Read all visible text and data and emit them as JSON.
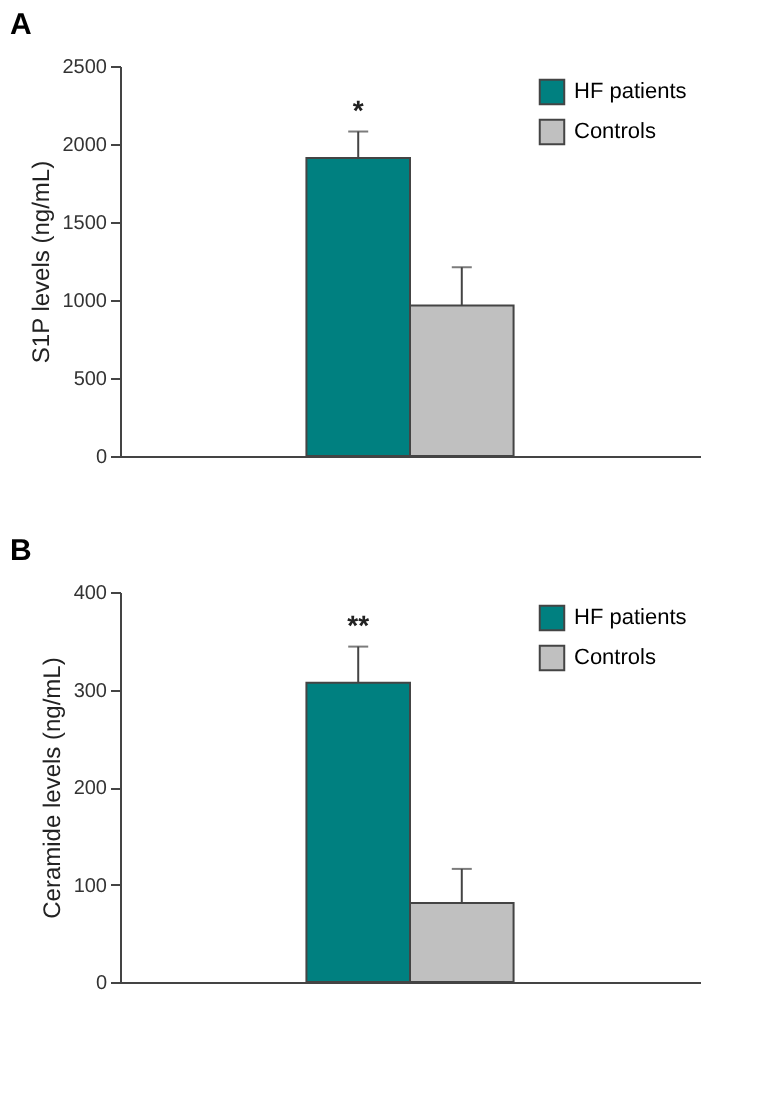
{
  "chart_data": [
    {
      "type": "bar",
      "title": "A",
      "ylabel": "S1P levels (ng/mL)",
      "categories": [
        null
      ],
      "ylim": [
        0,
        2500
      ],
      "yticks": [
        0,
        500,
        1000,
        1500,
        2000,
        2500
      ],
      "grid": false,
      "legend": "top right",
      "series": [
        {
          "name": "HF patients",
          "color": "#008080",
          "values": [
            1910
          ],
          "errors": [
            [
              1910,
              2080
            ]
          ]
        },
        {
          "name": "Controls",
          "color": "#c0c0c0",
          "values": [
            965
          ],
          "errors": [
            [
              965,
              1210
            ]
          ]
        }
      ],
      "annotations": [
        {
          "text": "*",
          "y": 2080
        }
      ]
    },
    {
      "type": "bar",
      "title": "B",
      "ylabel": "Ceramide levels (ng/mL)",
      "categories": [
        null
      ],
      "ylim": [
        0,
        400
      ],
      "yticks": [
        0,
        100,
        200,
        300,
        400
      ],
      "grid": false,
      "legend": "top right",
      "series": [
        {
          "name": "HF patients",
          "color": "#008080",
          "values": [
            307
          ],
          "errors": [
            [
              307,
              344
            ]
          ]
        },
        {
          "name": "Controls",
          "color": "#c0c0c0",
          "values": [
            81
          ],
          "errors": [
            [
              81,
              116
            ]
          ]
        }
      ],
      "annotations": [
        {
          "text": "**",
          "y": 344
        }
      ]
    }
  ]
}
